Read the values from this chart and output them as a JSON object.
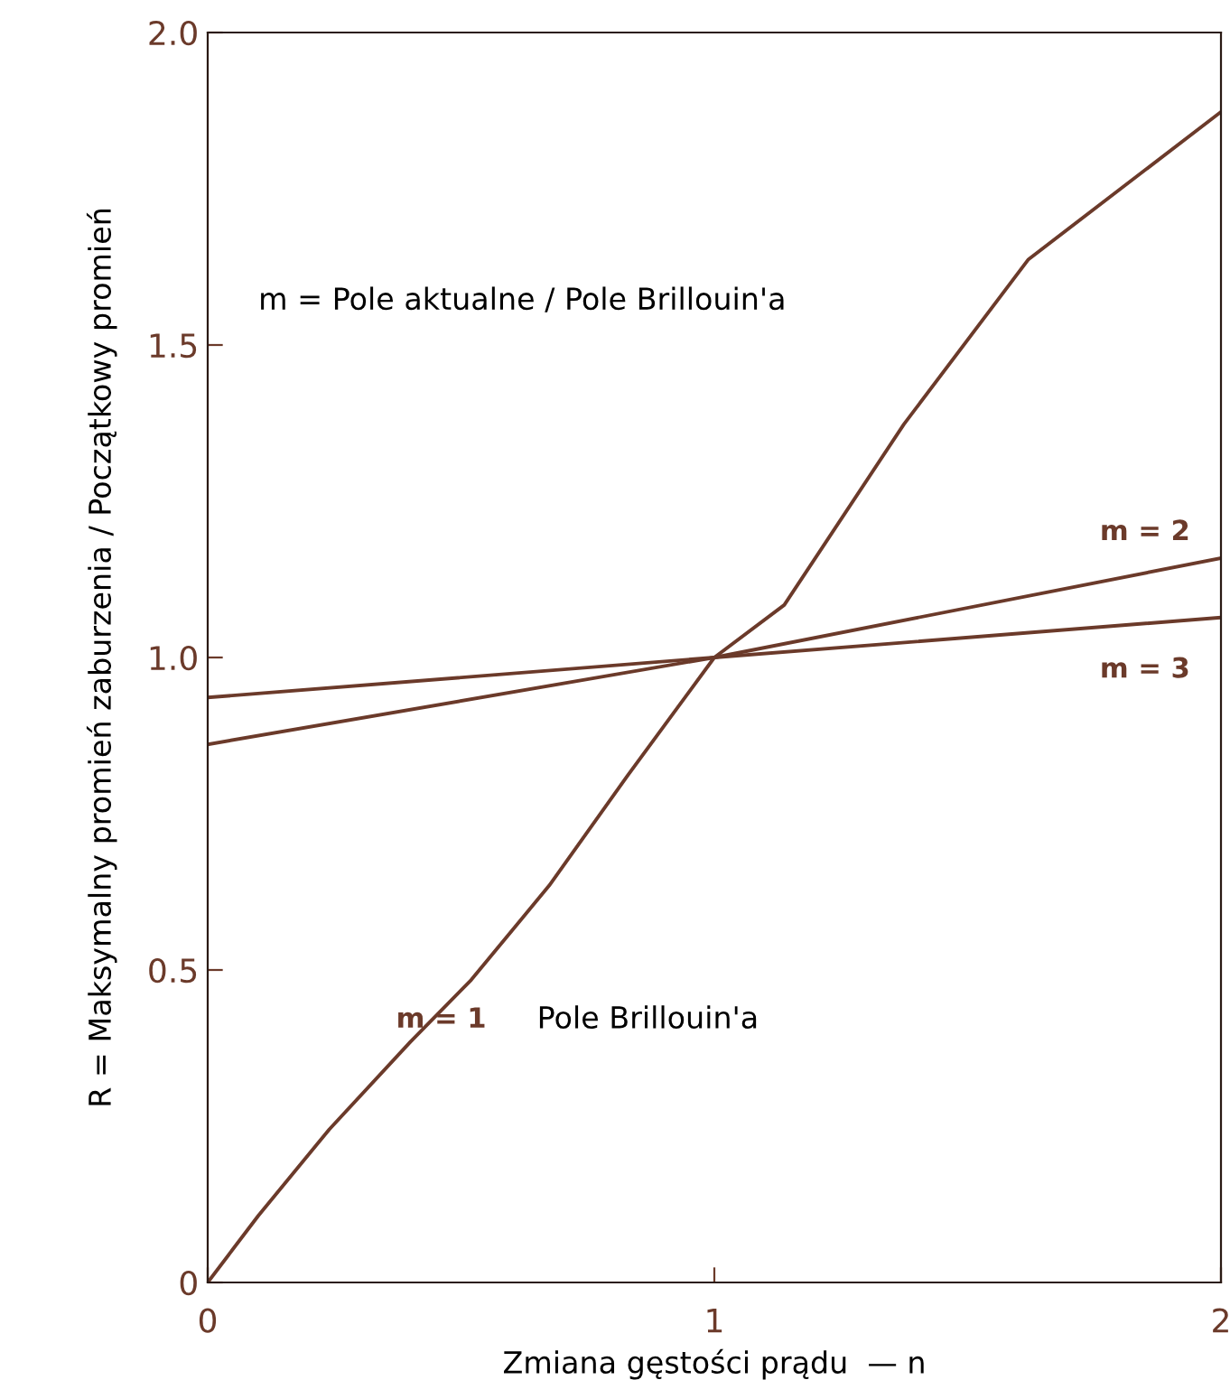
{
  "chart_data": {
    "type": "line",
    "xlabel": "Zmiana gęstości prądu  — n",
    "ylabel": "R = Maksymalny promień zaburzenia / Początkowy promień",
    "xlim": [
      0,
      2
    ],
    "xticks": [
      0,
      1,
      2
    ],
    "ylim": [
      0,
      2
    ],
    "yticks": [
      0,
      0.5,
      {
        "value": 1,
        "label": "1.0"
      },
      1.5,
      {
        "value": 2,
        "label": "2.0"
      }
    ],
    "grid": false,
    "legend": false,
    "marker": "none",
    "line_style": "solid",
    "series": [
      {
        "name": "m = 1",
        "color": "#6b3a2a",
        "x": [
          0,
          0.1,
          0.24,
          0.4,
          0.52,
          0.674,
          0.828,
          1.0,
          1.138,
          1.374,
          1.62,
          2.0
        ],
        "values": [
          0,
          0.107,
          0.245,
          0.385,
          0.484,
          0.635,
          0.81,
          1.0,
          1.084,
          1.373,
          1.637,
          1.873
        ]
      },
      {
        "name": "m = 2",
        "color": "#6b3a2a",
        "x": [
          0,
          1,
          2
        ],
        "values": [
          0.861,
          1.0,
          1.159
        ]
      },
      {
        "name": "m = 3",
        "color": "#6b3a2a",
        "x": [
          0,
          1,
          2
        ],
        "values": [
          0.936,
          1.0,
          1.064
        ]
      }
    ],
    "annotations": [
      "m = Pole aktualne / Pole Brillouin'a",
      "Pole Brillouin'a"
    ]
  }
}
